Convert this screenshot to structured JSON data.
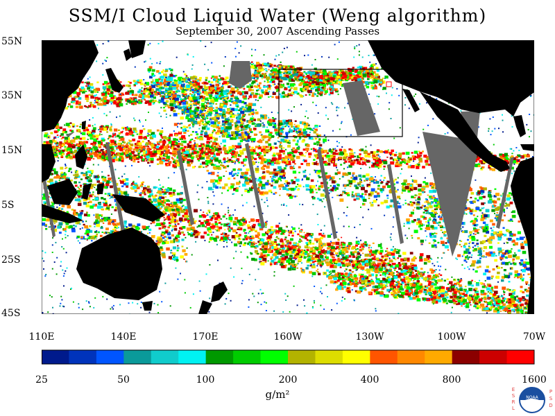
{
  "title": "SSM/I Cloud Liquid Water (Weng algorithm)",
  "subtitle": "September 30, 2007  Ascending Passes",
  "lat_labels": [
    "55N",
    "35N",
    "15N",
    "5S",
    "25S",
    "45S"
  ],
  "lon_labels": [
    "110E",
    "140E",
    "170E",
    "160W",
    "130W",
    "100W",
    "70W"
  ],
  "colorbar": {
    "colors": [
      "#001a8c",
      "#0033bb",
      "#0055ff",
      "#0a9a9a",
      "#10cccc",
      "#00f2f2",
      "#009900",
      "#00cc00",
      "#00ff00",
      "#b3b300",
      "#dddd00",
      "#ffff00",
      "#ff5500",
      "#ff8800",
      "#ffaa00",
      "#8b0000",
      "#cc0000",
      "#ff0000"
    ],
    "labels": [
      "25",
      "50",
      "100",
      "200",
      "400",
      "800",
      "1600"
    ]
  },
  "units": "g/m²",
  "logo": {
    "left_letters": "ESRL",
    "right_letters": "PSD",
    "center_text": "NOAA"
  },
  "colors": {
    "land": "#000000",
    "missing": "#666666",
    "no_cloud": "#ffffff",
    "box": "#000000",
    "marker": "#ff0000"
  }
}
